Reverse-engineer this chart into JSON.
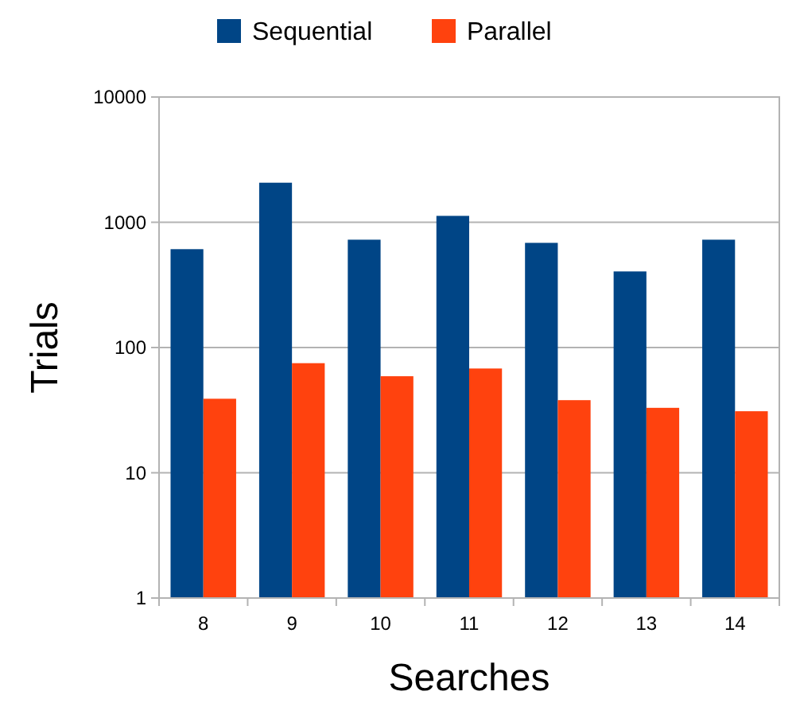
{
  "chart_data": {
    "type": "bar",
    "xlabel": "Searches",
    "ylabel": "Trials",
    "categories": [
      "8",
      "9",
      "10",
      "11",
      "12",
      "13",
      "14"
    ],
    "series": [
      {
        "name": "Sequential",
        "color": "#004586",
        "values": [
          610,
          2070,
          726,
          1125,
          685,
          405,
          726
        ]
      },
      {
        "name": "Parallel",
        "color": "#ff420e",
        "values": [
          39,
          75,
          59,
          68,
          38,
          33,
          31
        ]
      }
    ],
    "log": "y",
    "ylim": [
      1,
      10000
    ],
    "yticks": [
      1,
      10,
      100,
      1000,
      10000
    ],
    "grid": "y",
    "legend": "top"
  }
}
